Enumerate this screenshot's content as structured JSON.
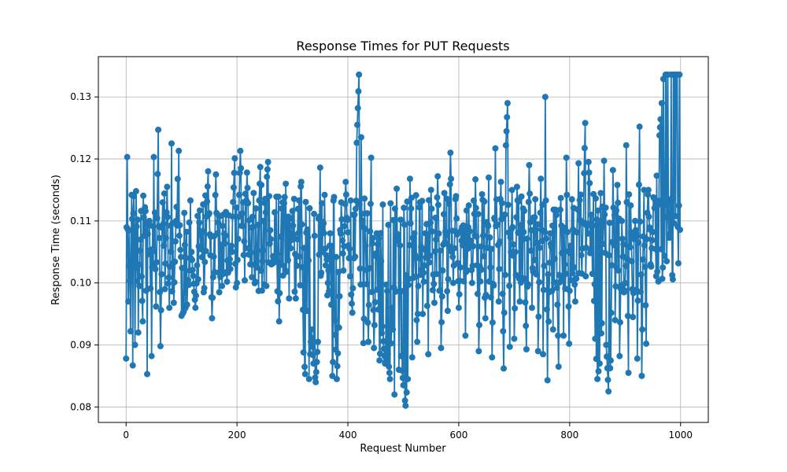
{
  "chart_data": {
    "type": "line",
    "title": "Response Times for PUT Requests",
    "xlabel": "Request Number",
    "ylabel": "Response Time (seconds)",
    "xlim": [
      -50,
      1050
    ],
    "ylim": [
      0.0775,
      0.1365
    ],
    "xticks": [
      0,
      200,
      400,
      600,
      800,
      1000
    ],
    "yticks": [
      0.08,
      0.09,
      0.1,
      0.11,
      0.12,
      0.13
    ],
    "ytick_labels": [
      "0.08",
      "0.09",
      "0.10",
      "0.11",
      "0.12",
      "0.13"
    ],
    "grid": true,
    "color": "#1f77b4",
    "marker": "circle",
    "anchors": [
      [
        0,
        0.0878
      ],
      [
        2,
        0.1203
      ],
      [
        4,
        0.097
      ],
      [
        6,
        0.1085
      ],
      [
        8,
        0.0922
      ],
      [
        10,
        0.1142
      ],
      [
        12,
        0.0867
      ],
      [
        14,
        0.114
      ],
      [
        16,
        0.09
      ],
      [
        18,
        0.1148
      ],
      [
        22,
        0.092
      ],
      [
        26,
        0.107
      ],
      [
        30,
        0.0938
      ],
      [
        34,
        0.1122
      ],
      [
        38,
        0.0853
      ],
      [
        42,
        0.11
      ],
      [
        46,
        0.0882
      ],
      [
        50,
        0.1203
      ],
      [
        54,
        0.0962
      ],
      [
        58,
        0.1247
      ],
      [
        62,
        0.0898
      ],
      [
        66,
        0.113
      ],
      [
        70,
        0.099
      ],
      [
        74,
        0.1155
      ],
      [
        78,
        0.096
      ],
      [
        82,
        0.1225
      ],
      [
        86,
        0.0968
      ],
      [
        90,
        0.11
      ],
      [
        95,
        0.1213
      ],
      [
        100,
        0.0947
      ],
      [
        110,
        0.0965
      ],
      [
        118,
        0.105
      ],
      [
        125,
        0.096
      ],
      [
        133,
        0.1117
      ],
      [
        140,
        0.0985
      ],
      [
        148,
        0.118
      ],
      [
        155,
        0.0943
      ],
      [
        162,
        0.1175
      ],
      [
        168,
        0.0985
      ],
      [
        175,
        0.111
      ],
      [
        182,
        0.1002
      ],
      [
        190,
        0.106
      ],
      [
        196,
        0.1201
      ],
      [
        200,
        0.1
      ],
      [
        206,
        0.1213
      ],
      [
        212,
        0.1045
      ],
      [
        218,
        0.1178
      ],
      [
        224,
        0.103
      ],
      [
        230,
        0.1145
      ],
      [
        236,
        0.1025
      ],
      [
        242,
        0.1187
      ],
      [
        248,
        0.11
      ],
      [
        256,
        0.1195
      ],
      [
        262,
        0.103
      ],
      [
        270,
        0.1035
      ],
      [
        276,
        0.0938
      ],
      [
        280,
        0.112
      ],
      [
        288,
        0.116
      ],
      [
        294,
        0.0975
      ],
      [
        300,
        0.1116
      ],
      [
        306,
        0.0975
      ],
      [
        312,
        0.1133
      ],
      [
        316,
        0.1163
      ],
      [
        320,
        0.0888
      ],
      [
        323,
        0.0853
      ],
      [
        326,
        0.0955
      ],
      [
        330,
        0.0845
      ],
      [
        334,
        0.0925
      ],
      [
        338,
        0.087
      ],
      [
        342,
        0.084
      ],
      [
        346,
        0.0905
      ],
      [
        350,
        0.1186
      ],
      [
        354,
        0.105
      ],
      [
        358,
        0.1142
      ],
      [
        363,
        0.098
      ],
      [
        368,
        0.108
      ],
      [
        372,
        0.085
      ],
      [
        376,
        0.094
      ],
      [
        380,
        0.0845
      ],
      [
        384,
        0.0928
      ],
      [
        388,
        0.113
      ],
      [
        392,
        0.102
      ],
      [
        396,
        0.1163
      ],
      [
        402,
        0.104
      ],
      [
        408,
        0.0952
      ],
      [
        412,
        0.111
      ],
      [
        417,
        0.1255
      ],
      [
        420,
        0.1336
      ],
      [
        424,
        0.1235
      ],
      [
        428,
        0.0903
      ],
      [
        432,
        0.106
      ],
      [
        437,
        0.0905
      ],
      [
        442,
        0.1202
      ],
      [
        447,
        0.0895
      ],
      [
        452,
        0.108
      ],
      [
        457,
        0.0875
      ],
      [
        462,
        0.093
      ],
      [
        467,
        0.087
      ],
      [
        472,
        0.0885
      ],
      [
        476,
        0.0845
      ],
      [
        480,
        0.096
      ],
      [
        484,
        0.082
      ],
      [
        488,
        0.1152
      ],
      [
        492,
        0.086
      ],
      [
        496,
        0.0882
      ],
      [
        500,
        0.0835
      ],
      [
        504,
        0.0802
      ],
      [
        508,
        0.0845
      ],
      [
        512,
        0.1168
      ],
      [
        516,
        0.088
      ],
      [
        520,
        0.108
      ],
      [
        525,
        0.0905
      ],
      [
        530,
        0.113
      ],
      [
        535,
        0.095
      ],
      [
        540,
        0.108
      ],
      [
        545,
        0.0885
      ],
      [
        550,
        0.115
      ],
      [
        556,
        0.0968
      ],
      [
        562,
        0.1172
      ],
      [
        568,
        0.0895
      ],
      [
        574,
        0.1145
      ],
      [
        580,
        0.0955
      ],
      [
        585,
        0.121
      ],
      [
        590,
        0.1
      ],
      [
        595,
        0.114
      ],
      [
        600,
        0.096
      ],
      [
        606,
        0.109
      ],
      [
        612,
        0.0915
      ],
      [
        618,
        0.1125
      ],
      [
        624,
        0.1
      ],
      [
        630,
        0.1167
      ],
      [
        636,
        0.089
      ],
      [
        642,
        0.1143
      ],
      [
        648,
        0.0943
      ],
      [
        654,
        0.117
      ],
      [
        660,
        0.088
      ],
      [
        666,
        0.1217
      ],
      [
        672,
        0.097
      ],
      [
        676,
        0.1163
      ],
      [
        681,
        0.0862
      ],
      [
        685,
        0.1222
      ],
      [
        688,
        0.129
      ],
      [
        692,
        0.0897
      ],
      [
        696,
        0.115
      ],
      [
        700,
        0.091
      ],
      [
        705,
        0.1155
      ],
      [
        710,
        0.097
      ],
      [
        716,
        0.112
      ],
      [
        722,
        0.0893
      ],
      [
        727,
        0.119
      ],
      [
        732,
        0.096
      ],
      [
        738,
        0.1135
      ],
      [
        743,
        0.089
      ],
      [
        748,
        0.1168
      ],
      [
        752,
        0.0885
      ],
      [
        756,
        0.13
      ],
      [
        760,
        0.0843
      ],
      [
        765,
        0.108
      ],
      [
        770,
        0.0925
      ],
      [
        775,
        0.1115
      ],
      [
        780,
        0.0865
      ],
      [
        784,
        0.1137
      ],
      [
        789,
        0.0915
      ],
      [
        794,
        0.1202
      ],
      [
        799,
        0.0902
      ],
      [
        804,
        0.1135
      ],
      [
        810,
        0.097
      ],
      [
        816,
        0.1193
      ],
      [
        822,
        0.1015
      ],
      [
        828,
        0.1258
      ],
      [
        834,
        0.1195
      ],
      [
        840,
        0.1093
      ],
      [
        846,
        0.091
      ],
      [
        850,
        0.0845
      ],
      [
        854,
        0.087
      ],
      [
        858,
        0.0935
      ],
      [
        862,
        0.1197
      ],
      [
        866,
        0.09
      ],
      [
        870,
        0.0825
      ],
      [
        874,
        0.0875
      ],
      [
        878,
        0.1182
      ],
      [
        882,
        0.094
      ],
      [
        886,
        0.1158
      ],
      [
        890,
        0.0882
      ],
      [
        894,
        0.11
      ],
      [
        898,
        0.0985
      ],
      [
        902,
        0.1222
      ],
      [
        906,
        0.0855
      ],
      [
        910,
        0.1125
      ],
      [
        914,
        0.0945
      ],
      [
        918,
        0.11
      ],
      [
        922,
        0.0878
      ],
      [
        926,
        0.1252
      ],
      [
        930,
        0.085
      ],
      [
        934,
        0.115
      ],
      [
        938,
        0.0902
      ],
      [
        942,
        0.115
      ],
      [
        946,
        0.103
      ],
      [
        950,
        0.1082
      ]
    ]
  }
}
